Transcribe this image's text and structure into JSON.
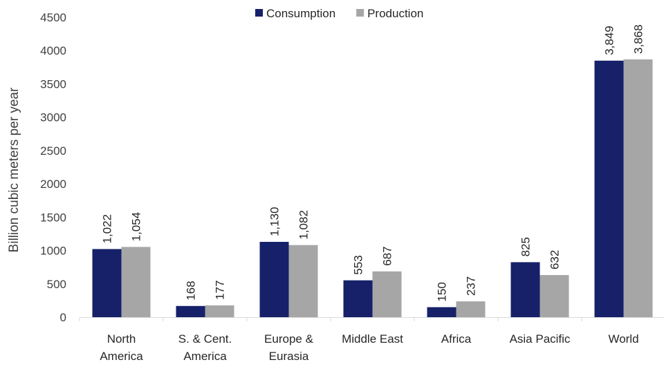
{
  "chart_data": {
    "type": "bar",
    "title": "",
    "xlabel": "",
    "ylabel": "Billion cubic meters per year",
    "ylim": [
      0,
      4500
    ],
    "yticks": [
      0,
      500,
      1000,
      1500,
      2000,
      2500,
      3000,
      3500,
      4000,
      4500
    ],
    "grid": false,
    "legend_position": "top",
    "categories": [
      [
        "North",
        "America"
      ],
      [
        "S. & Cent.",
        "America"
      ],
      [
        "Europe &",
        "Eurasia"
      ],
      [
        "Middle East"
      ],
      [
        "Africa"
      ],
      [
        "Asia Pacific"
      ],
      [
        "World"
      ]
    ],
    "series": [
      {
        "name": "Consumption",
        "color": "#16216a",
        "values": [
          1022,
          168,
          1130,
          553,
          150,
          825,
          3849
        ],
        "labels": [
          "1,022",
          "168",
          "1,130",
          "553",
          "150",
          "825",
          "3,849"
        ]
      },
      {
        "name": "Production",
        "color": "#a6a6a6",
        "values": [
          1054,
          177,
          1082,
          687,
          237,
          632,
          3868
        ],
        "labels": [
          "1,054",
          "177",
          "1,082",
          "687",
          "237",
          "632",
          "3,868"
        ]
      }
    ]
  }
}
